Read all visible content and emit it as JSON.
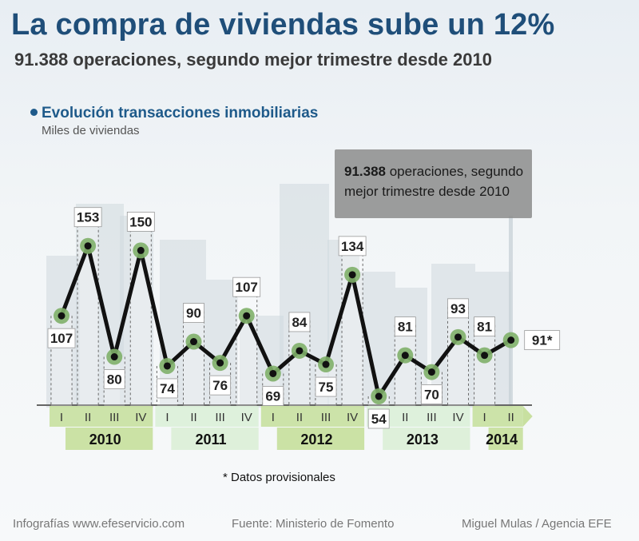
{
  "header": {
    "title": "La compra de viviendas sube un 12%",
    "subtitle": "91.388 operaciones, segundo mejor trimestre desde 2010"
  },
  "section": {
    "title": "Evolución transacciones inmobiliarias",
    "units": "Miles de viviendas"
  },
  "callout": {
    "bold": "91.388",
    "text_line1": " operaciones, segundo",
    "text_line2": "mejor trimestre desde 2010"
  },
  "note": "* Datos provisionales",
  "footer": {
    "left": "Infografías www.efeservicio.com",
    "center": "Fuente: Ministerio de Fomento",
    "right": "Miguel Mulas / Agencia EFE"
  },
  "colors": {
    "title": "#1f4e79",
    "line": "#111111",
    "marker_ring": "#7fb069",
    "year_band_dark": "#c8e0a0",
    "year_band_light": "#dcefd8",
    "axis": "#555555"
  },
  "chart_data": {
    "type": "line",
    "title": "Evolución transacciones inmobiliarias",
    "ylabel": "Miles de viviendas",
    "ylim": [
      40,
      160
    ],
    "grid": false,
    "quarters": [
      "I",
      "II",
      "III",
      "IV",
      "I",
      "II",
      "III",
      "IV",
      "I",
      "II",
      "III",
      "IV",
      "I",
      "II",
      "III",
      "IV",
      "I",
      "II"
    ],
    "years": [
      "2010",
      "2011",
      "2012",
      "2013",
      "2014"
    ],
    "values": [
      107,
      153,
      80,
      150,
      74,
      90,
      76,
      107,
      69,
      84,
      75,
      134,
      54,
      81,
      70,
      93,
      81,
      91
    ],
    "value_labels": [
      "107",
      "153",
      "80",
      "150",
      "74",
      "90",
      "76",
      "107",
      "69",
      "84",
      "75",
      "134",
      "54",
      "81",
      "70",
      "93",
      "81",
      "91*"
    ]
  }
}
